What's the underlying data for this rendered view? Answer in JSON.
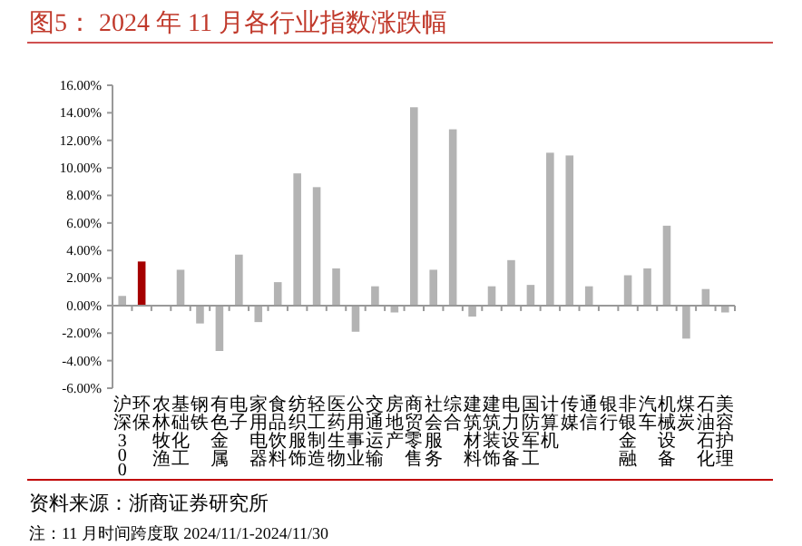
{
  "chart_data": {
    "type": "bar",
    "title": "图5：  2024 年 11 月各行业指数涨跌幅",
    "categories": [
      "沪深300",
      "环保",
      "农林牧渔",
      "基础化工",
      "钢铁",
      "有色金属",
      "电子",
      "家用电器",
      "食品饮料",
      "纺织服饰",
      "轻工制造",
      "医药生物",
      "公用事业",
      "交通运输",
      "房地产",
      "商贸零售",
      "社会服务",
      "综合",
      "建筑材料",
      "建筑装饰",
      "电力设备",
      "国防军工",
      "计算机",
      "传媒",
      "通信",
      "银行",
      "非银金融",
      "汽车",
      "机械设备",
      "煤炭",
      "石油石化",
      "美容护理"
    ],
    "values": [
      0.7,
      3.2,
      0.0,
      2.6,
      -1.3,
      -3.3,
      3.7,
      -1.2,
      1.7,
      9.6,
      8.6,
      2.7,
      -1.9,
      1.4,
      -0.5,
      14.4,
      2.6,
      12.8,
      -0.8,
      1.4,
      3.3,
      1.5,
      11.1,
      10.9,
      1.4,
      0.0,
      2.2,
      2.7,
      5.8,
      -2.4,
      1.2,
      -0.5
    ],
    "colors": [
      "#b3b3b3",
      "#a50000",
      "#b3b3b3",
      "#b3b3b3",
      "#b3b3b3",
      "#b3b3b3",
      "#b3b3b3",
      "#b3b3b3",
      "#b3b3b3",
      "#b3b3b3",
      "#b3b3b3",
      "#b3b3b3",
      "#b3b3b3",
      "#b3b3b3",
      "#b3b3b3",
      "#b3b3b3",
      "#b3b3b3",
      "#b3b3b3",
      "#b3b3b3",
      "#b3b3b3",
      "#b3b3b3",
      "#b3b3b3",
      "#b3b3b3",
      "#b3b3b3",
      "#b3b3b3",
      "#b3b3b3",
      "#b3b3b3",
      "#b3b3b3",
      "#b3b3b3",
      "#b3b3b3",
      "#b3b3b3",
      "#b3b3b3"
    ],
    "ylim": [
      -6,
      16
    ],
    "yticks": [
      {
        "value": -6,
        "label": "-6.00%"
      },
      {
        "value": -4,
        "label": "-4.00%"
      },
      {
        "value": -2,
        "label": "-2.00%"
      },
      {
        "value": 0,
        "label": "0.00%"
      },
      {
        "value": 2,
        "label": "2.00%"
      },
      {
        "value": 4,
        "label": "4.00%"
      },
      {
        "value": 6,
        "label": "6.00%"
      },
      {
        "value": 8,
        "label": "8.00%"
      },
      {
        "value": 10,
        "label": "10.00%"
      },
      {
        "value": 12,
        "label": "12.00%"
      },
      {
        "value": 14,
        "label": "14.00%"
      },
      {
        "value": 16,
        "label": "16.00%"
      }
    ],
    "annotations": [
      "资料来源：浙商证券研究所",
      "注：11 月时间跨度取 2024/11/1-2024/11/30"
    ]
  }
}
